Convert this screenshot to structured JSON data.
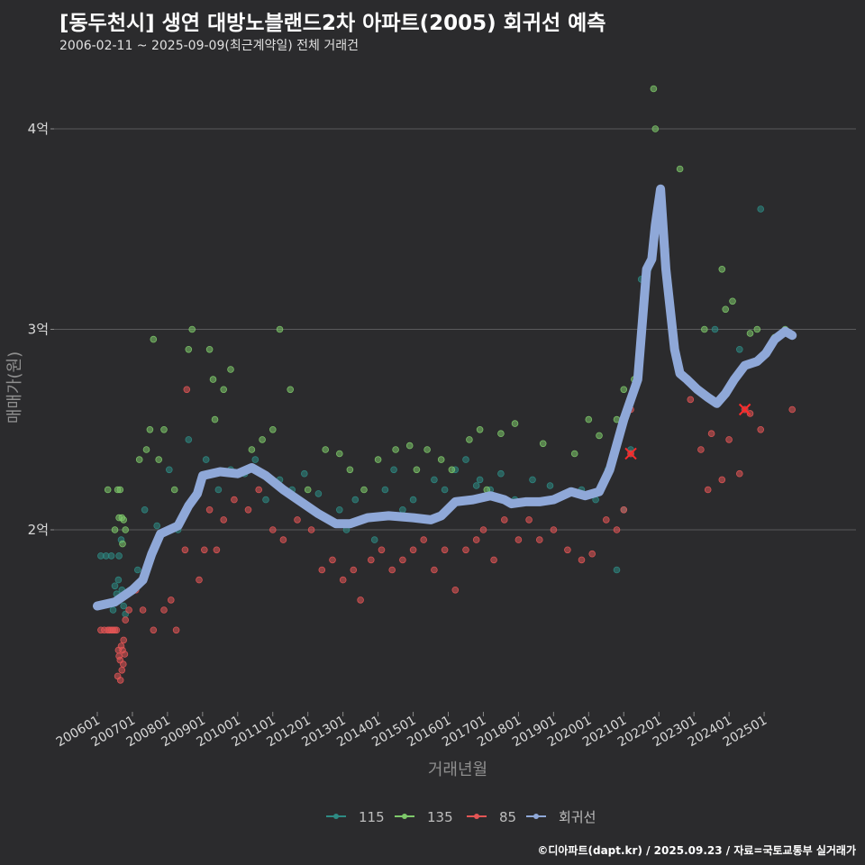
{
  "header": {
    "title": "[동두천시] 생연 대방노블랜드2차 아파트(2005) 회귀선 예측",
    "subtitle": "2006-02-11 ~ 2025-09-09(최근계약일) 전체 거래건"
  },
  "footer": {
    "credit": "©디아파트(dapt.kr) / 2025.09.23 / 자료=국토교통부 실거래가"
  },
  "colors": {
    "background": "#2b2b2d",
    "grid": "#5a5a5c",
    "s115": "#2e8b84",
    "s135": "#7ec96a",
    "s85": "#e35555",
    "regression": "#8fa8d8"
  },
  "chart_data": {
    "type": "scatter",
    "title": "[동두천시] 생연 대방노블랜드2차 아파트(2005) 회귀선 예측",
    "xlabel": "거래년월",
    "ylabel": "매매가(원)",
    "xlim": [
      2006.0,
      2026.0
    ],
    "ylim": [
      1.1,
      4.4
    ],
    "x_ticks": [
      {
        "value": 2006.0,
        "label": "200601"
      },
      {
        "value": 2007.0,
        "label": "200701"
      },
      {
        "value": 2008.0,
        "label": "200801"
      },
      {
        "value": 2009.0,
        "label": "200901"
      },
      {
        "value": 2010.0,
        "label": "201001"
      },
      {
        "value": 2011.0,
        "label": "201101"
      },
      {
        "value": 2012.0,
        "label": "201201"
      },
      {
        "value": 2013.0,
        "label": "201301"
      },
      {
        "value": 2014.0,
        "label": "201401"
      },
      {
        "value": 2015.0,
        "label": "201501"
      },
      {
        "value": 2016.0,
        "label": "201601"
      },
      {
        "value": 2017.0,
        "label": "201701"
      },
      {
        "value": 2018.0,
        "label": "201801"
      },
      {
        "value": 2019.0,
        "label": "201901"
      },
      {
        "value": 2020.0,
        "label": "202001"
      },
      {
        "value": 2021.0,
        "label": "202101"
      },
      {
        "value": 2022.0,
        "label": "202201"
      },
      {
        "value": 2023.0,
        "label": "202301"
      },
      {
        "value": 2024.0,
        "label": "202401"
      },
      {
        "value": 2025.0,
        "label": "202501"
      }
    ],
    "y_ticks": [
      {
        "value": 2,
        "label": "2억"
      },
      {
        "value": 3,
        "label": "3억"
      },
      {
        "value": 4,
        "label": "4억"
      }
    ],
    "legend": [
      {
        "name": "115",
        "key": "s115"
      },
      {
        "name": "135",
        "key": "s135"
      },
      {
        "name": "85",
        "key": "s85"
      },
      {
        "name": "회귀선",
        "key": "regression"
      }
    ],
    "series": [
      {
        "name": "115",
        "key": "s115",
        "points": [
          [
            2006.1,
            1.87
          ],
          [
            2006.25,
            1.87
          ],
          [
            2006.4,
            1.87
          ],
          [
            2006.5,
            1.72
          ],
          [
            2006.55,
            1.68
          ],
          [
            2006.6,
            1.75
          ],
          [
            2006.62,
            1.87
          ],
          [
            2006.7,
            1.7
          ],
          [
            2006.75,
            1.62
          ],
          [
            2006.45,
            1.6
          ],
          [
            2006.68,
            1.95
          ],
          [
            2006.8,
            1.58
          ],
          [
            2007.15,
            1.8
          ],
          [
            2007.35,
            2.1
          ],
          [
            2007.7,
            2.02
          ],
          [
            2008.05,
            2.3
          ],
          [
            2008.3,
            2.0
          ],
          [
            2008.6,
            2.45
          ],
          [
            2009.1,
            2.35
          ],
          [
            2009.45,
            2.2
          ],
          [
            2009.8,
            2.3
          ],
          [
            2010.2,
            2.28
          ],
          [
            2010.5,
            2.35
          ],
          [
            2010.8,
            2.15
          ],
          [
            2011.2,
            2.25
          ],
          [
            2011.55,
            2.2
          ],
          [
            2011.9,
            2.28
          ],
          [
            2012.3,
            2.18
          ],
          [
            2012.6,
            2.05
          ],
          [
            2012.9,
            2.1
          ],
          [
            2013.1,
            2.0
          ],
          [
            2013.35,
            2.15
          ],
          [
            2013.6,
            2.05
          ],
          [
            2013.9,
            1.95
          ],
          [
            2014.2,
            2.2
          ],
          [
            2014.45,
            2.3
          ],
          [
            2014.7,
            2.1
          ],
          [
            2015.0,
            2.15
          ],
          [
            2015.3,
            2.05
          ],
          [
            2015.6,
            2.25
          ],
          [
            2015.9,
            2.2
          ],
          [
            2016.2,
            2.3
          ],
          [
            2016.5,
            2.35
          ],
          [
            2016.8,
            2.22
          ],
          [
            2016.9,
            2.25
          ],
          [
            2017.2,
            2.2
          ],
          [
            2017.5,
            2.28
          ],
          [
            2017.9,
            2.15
          ],
          [
            2018.4,
            2.25
          ],
          [
            2018.9,
            2.22
          ],
          [
            2019.3,
            2.18
          ],
          [
            2019.8,
            2.2
          ],
          [
            2020.2,
            2.15
          ],
          [
            2020.55,
            2.3
          ],
          [
            2020.8,
            1.8
          ],
          [
            2021.0,
            2.1
          ],
          [
            2021.2,
            2.4
          ],
          [
            2021.5,
            3.25
          ],
          [
            2021.7,
            3.3
          ],
          [
            2022.2,
            3.4
          ],
          [
            2022.6,
            2.8
          ],
          [
            2023.6,
            3.0
          ],
          [
            2024.3,
            2.9
          ],
          [
            2024.9,
            3.6
          ]
        ]
      },
      {
        "name": "135",
        "key": "s135",
        "points": [
          [
            2006.3,
            2.2
          ],
          [
            2006.5,
            2.0
          ],
          [
            2006.58,
            2.2
          ],
          [
            2006.62,
            2.06
          ],
          [
            2006.65,
            2.2
          ],
          [
            2006.7,
            2.06
          ],
          [
            2006.72,
            1.93
          ],
          [
            2006.75,
            2.05
          ],
          [
            2006.8,
            2.0
          ],
          [
            2007.2,
            2.35
          ],
          [
            2007.4,
            2.4
          ],
          [
            2007.5,
            2.5
          ],
          [
            2007.6,
            2.95
          ],
          [
            2007.75,
            2.35
          ],
          [
            2007.9,
            2.5
          ],
          [
            2008.2,
            2.2
          ],
          [
            2008.6,
            2.9
          ],
          [
            2008.7,
            3.0
          ],
          [
            2009.2,
            2.9
          ],
          [
            2009.3,
            2.75
          ],
          [
            2009.35,
            2.55
          ],
          [
            2009.6,
            2.7
          ],
          [
            2009.8,
            2.8
          ],
          [
            2010.4,
            2.4
          ],
          [
            2010.7,
            2.45
          ],
          [
            2011.0,
            2.5
          ],
          [
            2011.2,
            3.0
          ],
          [
            2011.5,
            2.7
          ],
          [
            2012.0,
            2.2
          ],
          [
            2012.5,
            2.4
          ],
          [
            2012.9,
            2.38
          ],
          [
            2013.2,
            2.3
          ],
          [
            2013.6,
            2.2
          ],
          [
            2014.0,
            2.35
          ],
          [
            2014.5,
            2.4
          ],
          [
            2014.9,
            2.42
          ],
          [
            2015.1,
            2.3
          ],
          [
            2015.4,
            2.4
          ],
          [
            2015.8,
            2.35
          ],
          [
            2016.1,
            2.3
          ],
          [
            2016.6,
            2.45
          ],
          [
            2016.9,
            2.5
          ],
          [
            2017.1,
            2.2
          ],
          [
            2017.5,
            2.48
          ],
          [
            2017.9,
            2.53
          ],
          [
            2018.7,
            2.43
          ],
          [
            2019.6,
            2.38
          ],
          [
            2020.0,
            2.55
          ],
          [
            2020.3,
            2.47
          ],
          [
            2020.8,
            2.55
          ],
          [
            2021.0,
            2.7
          ],
          [
            2021.3,
            2.75
          ],
          [
            2021.85,
            4.2
          ],
          [
            2021.9,
            4.0
          ],
          [
            2022.6,
            3.8
          ],
          [
            2023.3,
            3.0
          ],
          [
            2023.8,
            3.3
          ],
          [
            2023.9,
            3.1
          ],
          [
            2024.1,
            3.14
          ],
          [
            2024.6,
            2.98
          ],
          [
            2024.8,
            3.0
          ],
          [
            2025.3,
            2.96
          ],
          [
            2025.6,
            3.0
          ]
        ]
      },
      {
        "name": "85",
        "key": "s85",
        "points": [
          [
            2006.1,
            1.5
          ],
          [
            2006.2,
            1.5
          ],
          [
            2006.3,
            1.5
          ],
          [
            2006.35,
            1.5
          ],
          [
            2006.4,
            1.5
          ],
          [
            2006.45,
            1.5
          ],
          [
            2006.5,
            1.5
          ],
          [
            2006.55,
            1.5
          ],
          [
            2006.6,
            1.4
          ],
          [
            2006.62,
            1.37
          ],
          [
            2006.65,
            1.35
          ],
          [
            2006.68,
            1.42
          ],
          [
            2006.7,
            1.3
          ],
          [
            2006.72,
            1.4
          ],
          [
            2006.75,
            1.45
          ],
          [
            2006.58,
            1.27
          ],
          [
            2006.66,
            1.25
          ],
          [
            2006.74,
            1.33
          ],
          [
            2006.78,
            1.38
          ],
          [
            2006.8,
            1.55
          ],
          [
            2006.9,
            1.6
          ],
          [
            2007.1,
            1.7
          ],
          [
            2007.3,
            1.6
          ],
          [
            2007.6,
            1.5
          ],
          [
            2007.9,
            1.6
          ],
          [
            2008.1,
            1.65
          ],
          [
            2008.25,
            1.5
          ],
          [
            2008.5,
            1.9
          ],
          [
            2008.55,
            2.7
          ],
          [
            2008.9,
            1.75
          ],
          [
            2009.05,
            1.9
          ],
          [
            2009.2,
            2.1
          ],
          [
            2009.4,
            1.9
          ],
          [
            2009.6,
            2.05
          ],
          [
            2009.9,
            2.15
          ],
          [
            2010.3,
            2.1
          ],
          [
            2010.6,
            2.2
          ],
          [
            2011.0,
            2.0
          ],
          [
            2011.3,
            1.95
          ],
          [
            2011.7,
            2.05
          ],
          [
            2012.1,
            2.0
          ],
          [
            2012.4,
            1.8
          ],
          [
            2012.7,
            1.85
          ],
          [
            2013.0,
            1.75
          ],
          [
            2013.3,
            1.8
          ],
          [
            2013.5,
            1.65
          ],
          [
            2013.8,
            1.85
          ],
          [
            2014.1,
            1.9
          ],
          [
            2014.4,
            1.8
          ],
          [
            2014.7,
            1.85
          ],
          [
            2015.0,
            1.9
          ],
          [
            2015.3,
            1.95
          ],
          [
            2015.6,
            1.8
          ],
          [
            2015.9,
            1.9
          ],
          [
            2016.2,
            1.7
          ],
          [
            2016.5,
            1.9
          ],
          [
            2016.8,
            1.95
          ],
          [
            2017.0,
            2.0
          ],
          [
            2017.3,
            1.85
          ],
          [
            2017.6,
            2.05
          ],
          [
            2018.0,
            1.95
          ],
          [
            2018.3,
            2.05
          ],
          [
            2018.6,
            1.95
          ],
          [
            2019.0,
            2.0
          ],
          [
            2019.4,
            1.9
          ],
          [
            2019.8,
            1.85
          ],
          [
            2020.1,
            1.88
          ],
          [
            2020.5,
            2.05
          ],
          [
            2020.8,
            2.0
          ],
          [
            2021.0,
            2.1
          ],
          [
            2021.2,
            2.6
          ],
          [
            2022.9,
            2.65
          ],
          [
            2023.2,
            2.4
          ],
          [
            2023.4,
            2.2
          ],
          [
            2023.5,
            2.48
          ],
          [
            2023.8,
            2.25
          ],
          [
            2024.0,
            2.45
          ],
          [
            2024.3,
            2.28
          ],
          [
            2024.6,
            2.58
          ],
          [
            2024.9,
            2.5
          ],
          [
            2025.8,
            2.6
          ]
        ]
      }
    ],
    "regression": {
      "name": "회귀선",
      "points": [
        [
          2006.0,
          1.62
        ],
        [
          2006.5,
          1.64
        ],
        [
          2007.0,
          1.7
        ],
        [
          2007.3,
          1.75
        ],
        [
          2007.55,
          1.88
        ],
        [
          2007.8,
          1.98
        ],
        [
          2008.3,
          2.02
        ],
        [
          2008.6,
          2.12
        ],
        [
          2008.85,
          2.18
        ],
        [
          2009.0,
          2.27
        ],
        [
          2009.5,
          2.29
        ],
        [
          2010.0,
          2.28
        ],
        [
          2010.4,
          2.31
        ],
        [
          2010.8,
          2.27
        ],
        [
          2011.3,
          2.2
        ],
        [
          2011.8,
          2.14
        ],
        [
          2012.3,
          2.08
        ],
        [
          2012.8,
          2.03
        ],
        [
          2013.2,
          2.03
        ],
        [
          2013.7,
          2.06
        ],
        [
          2014.3,
          2.07
        ],
        [
          2015.0,
          2.06
        ],
        [
          2015.5,
          2.05
        ],
        [
          2015.8,
          2.07
        ],
        [
          2016.2,
          2.14
        ],
        [
          2016.7,
          2.15
        ],
        [
          2017.2,
          2.17
        ],
        [
          2017.6,
          2.15
        ],
        [
          2017.8,
          2.13
        ],
        [
          2018.2,
          2.14
        ],
        [
          2018.6,
          2.14
        ],
        [
          2019.0,
          2.15
        ],
        [
          2019.5,
          2.19
        ],
        [
          2019.9,
          2.17
        ],
        [
          2020.3,
          2.19
        ],
        [
          2020.6,
          2.3
        ],
        [
          2021.0,
          2.55
        ],
        [
          2021.4,
          2.75
        ],
        [
          2021.65,
          3.3
        ],
        [
          2021.8,
          3.35
        ],
        [
          2021.9,
          3.52
        ],
        [
          2022.05,
          3.7
        ],
        [
          2022.2,
          3.3
        ],
        [
          2022.45,
          2.9
        ],
        [
          2022.6,
          2.78
        ],
        [
          2022.8,
          2.75
        ],
        [
          2023.1,
          2.7
        ],
        [
          2023.4,
          2.66
        ],
        [
          2023.65,
          2.63
        ],
        [
          2023.9,
          2.68
        ],
        [
          2024.15,
          2.75
        ],
        [
          2024.45,
          2.82
        ],
        [
          2024.8,
          2.84
        ],
        [
          2025.05,
          2.88
        ],
        [
          2025.3,
          2.95
        ],
        [
          2025.6,
          2.99
        ],
        [
          2025.8,
          2.97
        ]
      ]
    },
    "highlight_points": [
      [
        2021.2,
        2.38
      ],
      [
        2024.45,
        2.6
      ]
    ]
  }
}
